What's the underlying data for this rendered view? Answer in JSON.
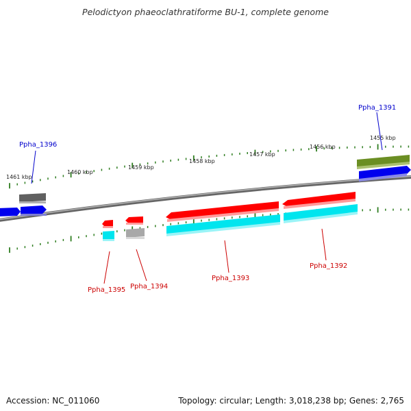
{
  "title": "Pelodictyon phaeoclathratiforme BU-1, complete genome",
  "accession": "Accession: NC_011060",
  "summary": "Topology: circular; Length: 3,018,238 bp; Genes: 2,765",
  "colors": {
    "backbone": "#8a8a8a",
    "tick": "#2e7d1f",
    "forward_label": "#0000cc",
    "reverse_label": "#cc0000",
    "cds": "#ff0000",
    "gene": "#00e5ee",
    "pseudo": "#aaaaaa",
    "misc": "#6b8e23",
    "blue": "#0000ee",
    "gray": "#777777"
  },
  "kbp_labels": [
    "1461 kbp",
    "1460 kbp",
    "1459 kbp",
    "1458 kbp",
    "1457 kbp",
    "1456 kbp",
    "1455 kbp"
  ],
  "genes": [
    {
      "label": "Ppha_1396",
      "strand": "forward"
    },
    {
      "label": "Ppha_1391",
      "strand": "forward"
    },
    {
      "label": "Ppha_1395",
      "strand": "reverse"
    },
    {
      "label": "Ppha_1394",
      "strand": "reverse"
    },
    {
      "label": "Ppha_1393",
      "strand": "reverse"
    },
    {
      "label": "Ppha_1392",
      "strand": "reverse"
    }
  ]
}
